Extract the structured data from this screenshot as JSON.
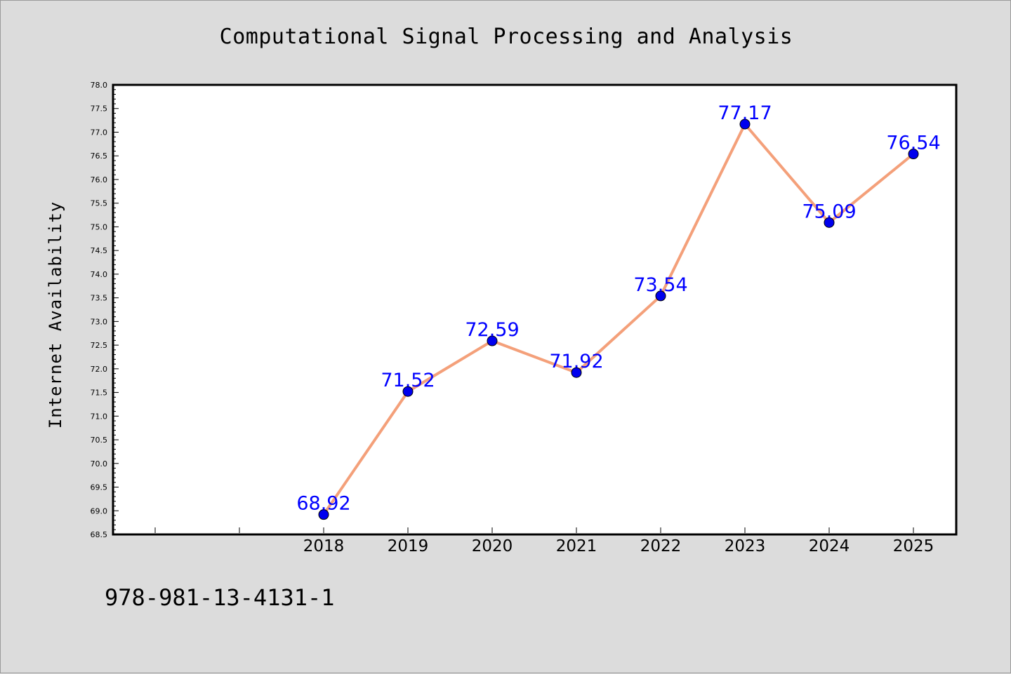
{
  "colors": {
    "background": "#dcdcdc",
    "plot_background": "#ffffff",
    "line": "#f4a07a",
    "marker": "#0000ee",
    "data_label": "#0000ff"
  },
  "footer": {
    "isbn": "978-981-13-4131-1"
  },
  "chart_data": {
    "type": "line",
    "title": "Computational Signal Processing and Analysis",
    "xlabel": "",
    "ylabel": "Internet Availability",
    "x": [
      "2018",
      "2019",
      "2020",
      "2021",
      "2022",
      "2023",
      "2024",
      "2025"
    ],
    "series": [
      {
        "values": [
          68.92,
          71.52,
          72.59,
          71.92,
          73.54,
          77.17,
          75.09,
          76.54
        ]
      }
    ],
    "data_labels": [
      "68.92",
      "71.52",
      "72.59",
      "71.92",
      "73.54",
      "77.17",
      "75.09",
      "76.54"
    ],
    "ylim": [
      68.5,
      78.0
    ],
    "y_ticks": [
      "68.5",
      "69.0",
      "69.5",
      "70.0",
      "70.5",
      "71.0",
      "71.5",
      "72.0",
      "72.5",
      "73.0",
      "73.5",
      "74.0",
      "74.5",
      "75.0",
      "75.5",
      "76.0",
      "76.5",
      "77.0",
      "77.5",
      "78.0"
    ],
    "grid": false,
    "legend": "none"
  }
}
